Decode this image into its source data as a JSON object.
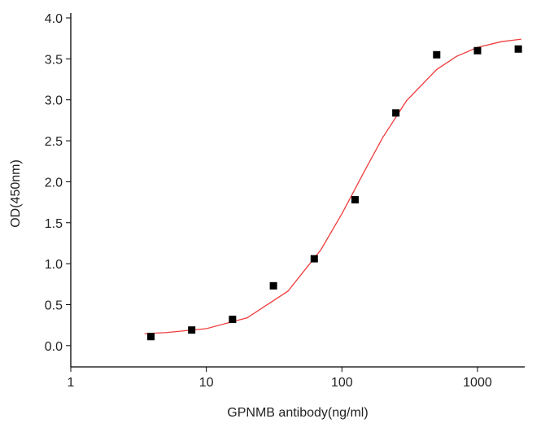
{
  "chart_data": {
    "type": "scatter",
    "x_label": "GPNMB  antibody(ng/ml)",
    "y_label": "OD(450nm)",
    "x": [
      3.9,
      7.8,
      15.6,
      31.25,
      62.5,
      125,
      250,
      500,
      1000,
      2000
    ],
    "values": [
      0.11,
      0.19,
      0.32,
      0.73,
      1.06,
      1.78,
      2.84,
      3.55,
      3.6,
      3.62
    ],
    "color": "#000000",
    "curve": {
      "color": "#f03c3c",
      "x": [
        3.5,
        5,
        10,
        20,
        40,
        70,
        100,
        150,
        200,
        300,
        500,
        700,
        1000,
        1500,
        2100
      ],
      "values": [
        0.146,
        0.158,
        0.207,
        0.339,
        0.665,
        1.17,
        1.61,
        2.16,
        2.54,
        2.99,
        3.37,
        3.53,
        3.64,
        3.71,
        3.74
      ]
    },
    "xscale": "log",
    "xlim": [
      1,
      2230
    ],
    "xticks": [
      1,
      10,
      100,
      1000
    ],
    "ylim": [
      -0.26,
      4.0
    ],
    "yticks": [
      {
        "value": 0,
        "label": "0.0"
      },
      0.5,
      {
        "value": 1,
        "label": "1.0"
      },
      1.5,
      {
        "value": 2,
        "label": "2.0"
      },
      2.5,
      {
        "value": 3,
        "label": "3.0"
      },
      3.5,
      {
        "value": 4,
        "label": "4.0"
      }
    ],
    "grid": false
  }
}
